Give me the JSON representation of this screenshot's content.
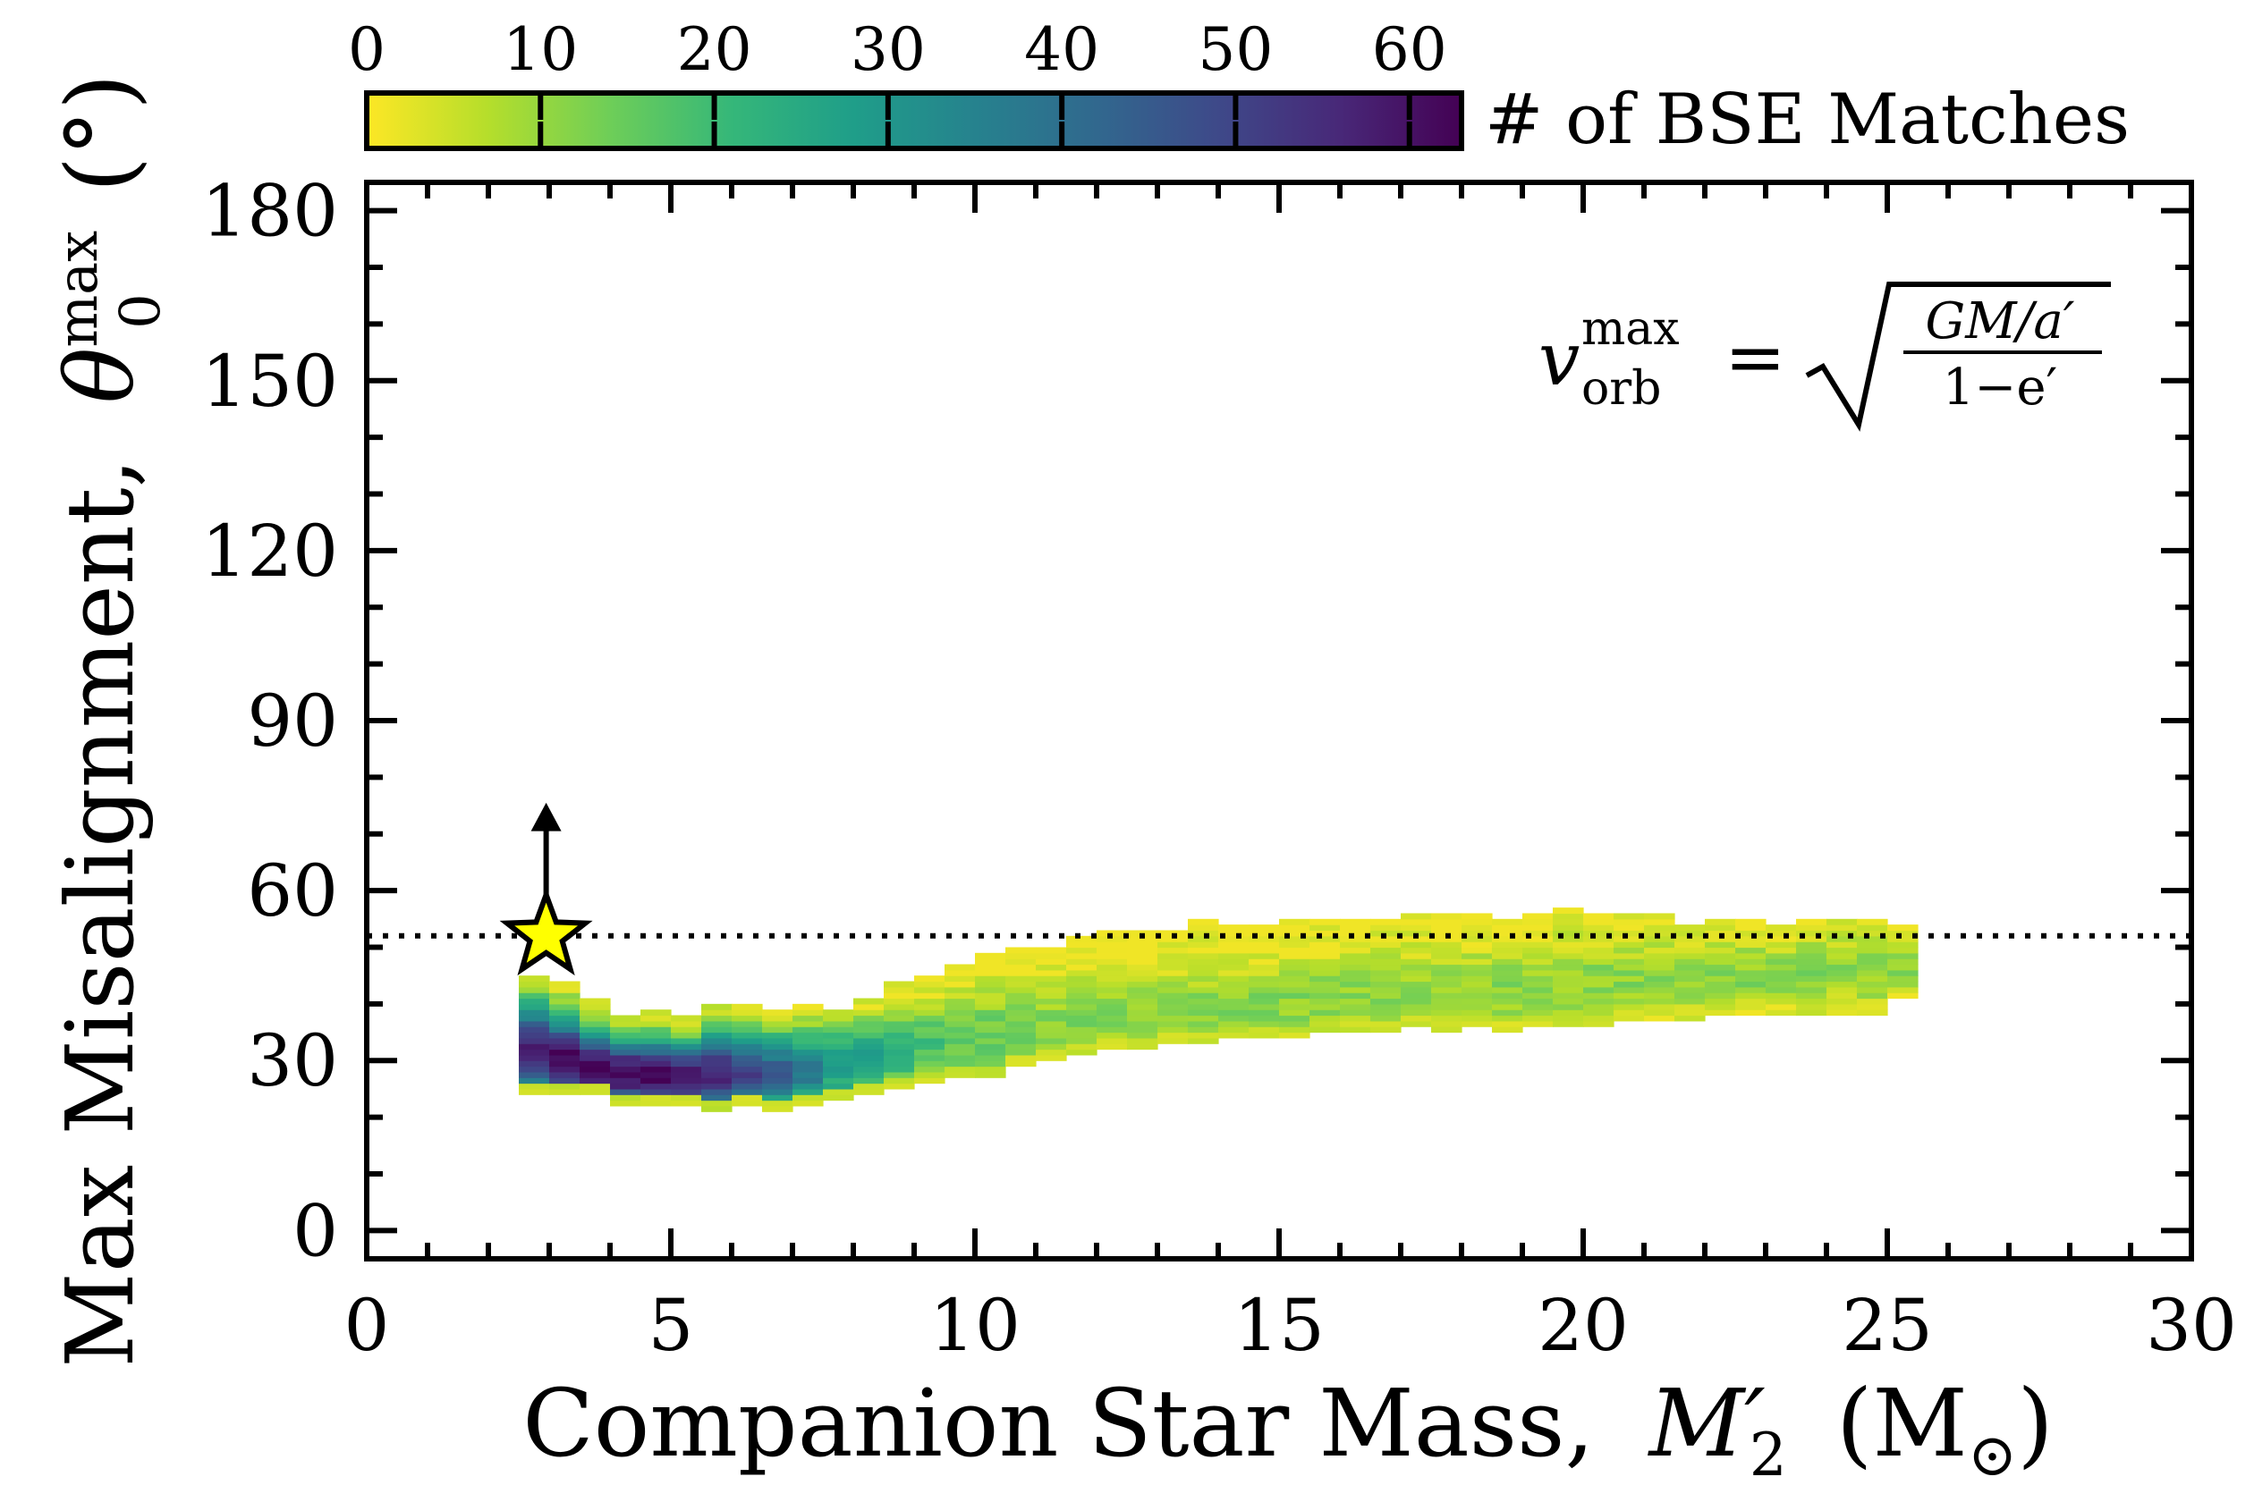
{
  "colorbar": {
    "label": "# of BSE Matches",
    "ticks": [
      "0",
      "10",
      "20",
      "30",
      "40",
      "50",
      "60"
    ],
    "range": [
      0,
      63
    ],
    "colors": [
      "#fde725",
      "#b5de2b",
      "#6ece58",
      "#35b779",
      "#1f9e89",
      "#26828e",
      "#31688e",
      "#3e4989",
      "#482878",
      "#440154"
    ]
  },
  "annotation": {
    "v": "v",
    "sup": "max",
    "sub": "orb",
    "eq": "=",
    "num": "GM/a′",
    "den": "1−e′"
  },
  "axes": {
    "xlabel": "Companion Star Mass,",
    "xlabel_sym": "M",
    "xlabel_sym_sup": "′",
    "xlabel_sym_sub": "2",
    "xlabel_unit": "(M",
    "xlabel_unit_sub": "⊙",
    "xlabel_unit_close": ")",
    "ylabel": "Max Misalignment,",
    "ylabel_sym": "θ",
    "ylabel_sym_sup": "max",
    "ylabel_sym_sub": "0",
    "ylabel_unit": "(°)",
    "xticks": [
      "0",
      "5",
      "10",
      "15",
      "20",
      "25",
      "30"
    ],
    "yticks": [
      "0",
      "30",
      "60",
      "90",
      "120",
      "150",
      "180"
    ]
  },
  "chart_data": {
    "type": "heatmap",
    "title": "",
    "xlabel": "Companion Star Mass, M′2 (M⊙)",
    "ylabel": "Max Misalignment, θ0max (°)",
    "xlim": [
      0,
      30
    ],
    "ylim": [
      -5,
      185
    ],
    "colorbar_label": "# of BSE Matches",
    "colorbar_range": [
      0,
      63
    ],
    "reference_line_y": 52,
    "marker": {
      "x": 2.95,
      "y": 52,
      "symbol": "star",
      "color": "#ffff00",
      "lower_limit_arrow": true
    },
    "envelope": {
      "x": [
        2.5,
        3.0,
        3.5,
        4.0,
        5.0,
        6.0,
        7.0,
        8.0,
        9.0,
        10.0,
        11.0,
        12.0,
        13.0,
        14.0,
        15.0,
        16.0,
        17.0,
        18.0,
        19.0,
        20.0,
        21.0,
        22.0,
        23.0,
        24.0,
        25.0,
        25.5
      ],
      "y_low": [
        26,
        25,
        24,
        23,
        22,
        22,
        22,
        24,
        26,
        28,
        30,
        32,
        33,
        34,
        35,
        35,
        36,
        36,
        36,
        37,
        37,
        38,
        38,
        39,
        39,
        44
      ],
      "y_high": [
        44,
        44,
        42,
        38,
        38,
        39,
        38,
        40,
        43,
        47,
        50,
        51,
        53,
        54,
        54,
        55,
        55,
        55,
        55,
        56,
        55,
        54,
        54,
        54,
        54,
        53
      ],
      "y_peak": [
        33,
        31,
        29,
        28,
        27,
        28,
        28,
        30,
        32,
        34,
        35,
        37,
        38,
        39,
        40,
        41,
        42,
        42,
        43,
        44,
        44,
        45,
        45,
        46,
        46,
        47
      ]
    },
    "bin_size": {
      "x": 0.5,
      "y": 1
    },
    "max_count_location": {
      "x": 4.0,
      "y": 28
    }
  }
}
